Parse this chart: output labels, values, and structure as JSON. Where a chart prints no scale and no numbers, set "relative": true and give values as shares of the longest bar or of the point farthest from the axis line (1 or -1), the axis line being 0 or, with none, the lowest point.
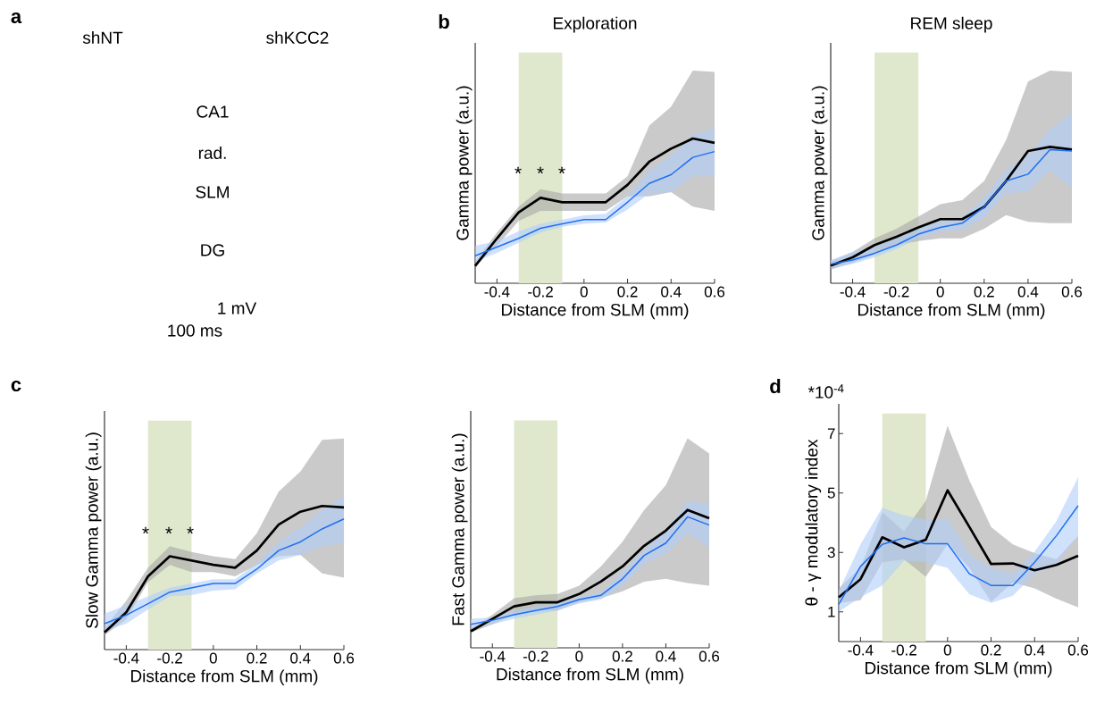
{
  "chart_data": [
    {
      "type": "other",
      "annotations": [
        "a",
        "shNT",
        "shKCC2",
        "CA1",
        "rad.",
        "SLM",
        "DG",
        "1 mV",
        "100 ms"
      ]
    },
    {
      "type": "line",
      "title": "Exploration",
      "xlabel": "Distance from SLM (mm)",
      "ylabel": "Gamma power (a.u.)",
      "relative": true,
      "x": [
        -0.5,
        -0.4,
        -0.3,
        -0.2,
        -0.1,
        0,
        0.1,
        0.2,
        0.3,
        0.4,
        0.5,
        0.6
      ],
      "xlim": [
        -0.5,
        0.6
      ],
      "xticks": [
        -0.4,
        -0.2,
        0,
        0.2,
        0.4,
        0.6
      ],
      "series": [
        {
          "color": "#000000",
          "values": [
            0.12,
            0.31,
            0.49,
            0.59,
            0.56,
            0.56,
            0.56,
            0.68,
            0.84,
            0.93,
            1.0,
            0.97
          ],
          "lower": [
            0.12,
            0.26,
            0.43,
            0.5,
            0.5,
            0.5,
            0.5,
            0.6,
            0.6,
            0.63,
            0.53,
            0.5
          ],
          "upper": [
            0.15,
            0.35,
            0.53,
            0.65,
            0.62,
            0.62,
            0.62,
            0.74,
            1.09,
            1.22,
            1.47,
            1.46
          ]
        },
        {
          "color": "#1f6ff2",
          "values": [
            0.19,
            0.25,
            0.31,
            0.38,
            0.41,
            0.44,
            0.44,
            0.56,
            0.69,
            0.75,
            0.87,
            0.91
          ],
          "lower": [
            0.15,
            0.21,
            0.28,
            0.35,
            0.39,
            0.41,
            0.42,
            0.51,
            0.62,
            0.63,
            0.74,
            0.74
          ],
          "upper": [
            0.26,
            0.29,
            0.36,
            0.41,
            0.44,
            0.47,
            0.48,
            0.6,
            0.78,
            0.88,
            1.03,
            1.07
          ]
        }
      ],
      "bands": [
        {
          "axis": "x",
          "from": -0.3,
          "to": -0.1,
          "color": "#dfe8cc"
        }
      ],
      "annotations": [
        "b",
        "*",
        "*",
        "*"
      ]
    },
    {
      "type": "line",
      "title": "REM sleep",
      "xlabel": "Distance from SLM (mm)",
      "ylabel": "Gamma power (a.u.)",
      "relative": true,
      "x": [
        -0.5,
        -0.4,
        -0.3,
        -0.2,
        -0.1,
        0,
        0.1,
        0.2,
        0.3,
        0.4,
        0.5,
        0.6
      ],
      "xlim": [
        -0.5,
        0.6
      ],
      "xticks": [
        -0.4,
        -0.2,
        0,
        0.2,
        0.4,
        0.6
      ],
      "series": [
        {
          "color": "#000000",
          "values": [
            0.13,
            0.19,
            0.28,
            0.34,
            0.41,
            0.47,
            0.47,
            0.56,
            0.75,
            0.97,
            1.0,
            0.98
          ],
          "lower": [
            0.1,
            0.15,
            0.21,
            0.28,
            0.31,
            0.33,
            0.33,
            0.4,
            0.5,
            0.45,
            0.44,
            0.44
          ],
          "upper": [
            0.16,
            0.23,
            0.33,
            0.4,
            0.49,
            0.58,
            0.61,
            0.75,
            1.05,
            1.48,
            1.56,
            1.55
          ]
        },
        {
          "color": "#1f6ff2",
          "values": [
            0.14,
            0.17,
            0.22,
            0.28,
            0.36,
            0.41,
            0.44,
            0.56,
            0.75,
            0.8,
            0.98,
            0.97
          ],
          "lower": [
            0.11,
            0.14,
            0.19,
            0.25,
            0.33,
            0.38,
            0.39,
            0.48,
            0.66,
            0.67,
            0.83,
            0.7
          ],
          "upper": [
            0.17,
            0.23,
            0.27,
            0.34,
            0.42,
            0.45,
            0.48,
            0.63,
            0.83,
            0.94,
            1.13,
            1.25
          ]
        }
      ],
      "bands": [
        {
          "axis": "x",
          "from": -0.3,
          "to": -0.1,
          "color": "#dfe8cc"
        }
      ]
    },
    {
      "type": "line",
      "xlabel": "Distance from SLM (mm)",
      "ylabel": "Slow Gamma power (a.u.)",
      "relative": true,
      "x": [
        -0.5,
        -0.4,
        -0.3,
        -0.2,
        -0.1,
        0,
        0.1,
        0.2,
        0.3,
        0.4,
        0.5,
        0.6
      ],
      "xlim": [
        -0.5,
        0.6
      ],
      "xticks": [
        -0.4,
        -0.2,
        0,
        0.2,
        0.4,
        0.6
      ],
      "series": [
        {
          "color": "#000000",
          "values": [
            0.12,
            0.26,
            0.51,
            0.65,
            0.62,
            0.59,
            0.57,
            0.69,
            0.87,
            0.96,
            1.0,
            0.99
          ],
          "lower": [
            0.1,
            0.21,
            0.47,
            0.59,
            0.54,
            0.54,
            0.51,
            0.59,
            0.65,
            0.66,
            0.53,
            0.5
          ],
          "upper": [
            0.15,
            0.34,
            0.57,
            0.72,
            0.68,
            0.65,
            0.63,
            0.81,
            1.1,
            1.24,
            1.46,
            1.47
          ]
        },
        {
          "color": "#1f6ff2",
          "values": [
            0.18,
            0.24,
            0.32,
            0.4,
            0.43,
            0.46,
            0.46,
            0.56,
            0.69,
            0.75,
            0.84,
            0.91
          ],
          "lower": [
            0.13,
            0.18,
            0.28,
            0.37,
            0.38,
            0.41,
            0.42,
            0.53,
            0.62,
            0.66,
            0.72,
            0.74
          ],
          "upper": [
            0.25,
            0.31,
            0.37,
            0.43,
            0.46,
            0.49,
            0.49,
            0.6,
            0.75,
            0.85,
            0.97,
            1.07
          ]
        }
      ],
      "bands": [
        {
          "axis": "x",
          "from": -0.3,
          "to": -0.1,
          "color": "#dfe8cc"
        }
      ],
      "annotations": [
        "c",
        "*",
        "*",
        "*"
      ]
    },
    {
      "type": "line",
      "xlabel": "Distance from SLM (mm)",
      "ylabel": "Fast Gamma power (a.u.)",
      "relative": true,
      "x": [
        -0.5,
        -0.4,
        -0.3,
        -0.2,
        -0.1,
        0,
        0.1,
        0.2,
        0.3,
        0.4,
        0.5,
        0.6
      ],
      "xlim": [
        -0.5,
        0.6
      ],
      "xticks": [
        -0.4,
        -0.2,
        0,
        0.2,
        0.4,
        0.6
      ],
      "series": [
        {
          "color": "#000000",
          "values": [
            0.12,
            0.21,
            0.3,
            0.33,
            0.33,
            0.39,
            0.48,
            0.59,
            0.74,
            0.85,
            1.0,
            0.94
          ],
          "lower": [
            0.11,
            0.17,
            0.24,
            0.27,
            0.27,
            0.33,
            0.36,
            0.41,
            0.48,
            0.5,
            0.47,
            0.45
          ],
          "upper": [
            0.14,
            0.24,
            0.36,
            0.38,
            0.39,
            0.45,
            0.59,
            0.77,
            1.0,
            1.18,
            1.52,
            1.41
          ]
        },
        {
          "color": "#1f6ff2",
          "values": [
            0.17,
            0.2,
            0.24,
            0.27,
            0.3,
            0.35,
            0.38,
            0.5,
            0.67,
            0.76,
            0.95,
            0.89
          ],
          "lower": [
            0.14,
            0.17,
            0.21,
            0.24,
            0.27,
            0.32,
            0.35,
            0.45,
            0.61,
            0.68,
            0.83,
            0.73
          ],
          "upper": [
            0.21,
            0.22,
            0.27,
            0.3,
            0.32,
            0.37,
            0.4,
            0.55,
            0.71,
            0.85,
            1.06,
            1.05
          ]
        }
      ],
      "bands": [
        {
          "axis": "x",
          "from": -0.3,
          "to": -0.1,
          "color": "#dfe8cc"
        }
      ]
    },
    {
      "type": "line",
      "xlabel": "Distance from SLM (mm)",
      "ylabel": "θ - γ modulatory index",
      "x": [
        -0.5,
        -0.4,
        -0.3,
        -0.2,
        -0.1,
        0,
        0.1,
        0.2,
        0.3,
        0.4,
        0.5,
        0.6
      ],
      "xlim": [
        -0.5,
        0.6
      ],
      "xticks": [
        -0.4,
        -0.2,
        0,
        0.2,
        0.4,
        0.6
      ],
      "ylim": [
        0,
        8
      ],
      "yticks": [
        1,
        3,
        5,
        7
      ],
      "series": [
        {
          "color": "#000000",
          "values": [
            1.49,
            2.1,
            3.51,
            3.17,
            3.43,
            5.09,
            3.86,
            2.61,
            2.63,
            2.4,
            2.58,
            2.89
          ],
          "lower": [
            1.3,
            1.39,
            2.67,
            2.77,
            2.18,
            3.27,
            2.48,
            1.34,
            1.99,
            1.79,
            1.44,
            1.15
          ],
          "upper": [
            1.79,
            2.48,
            4.35,
            3.71,
            4.74,
            7.26,
            5.43,
            3.86,
            3.27,
            2.98,
            2.77,
            3.56
          ]
        },
        {
          "color": "#1f6ff2",
          "values": [
            1.25,
            2.53,
            3.27,
            3.49,
            3.29,
            3.29,
            2.28,
            1.89,
            1.89,
            2.67,
            3.56,
            4.57
          ],
          "lower": [
            1.0,
            1.49,
            1.89,
            2.72,
            2.67,
            2.48,
            1.59,
            1.3,
            1.54,
            2.28,
            2.63,
            3.56
          ],
          "upper": [
            1.69,
            3.27,
            4.5,
            4.25,
            4.1,
            4.15,
            2.94,
            2.48,
            2.28,
            3.02,
            4.05,
            5.53
          ]
        }
      ],
      "bands": [
        {
          "axis": "x",
          "from": -0.3,
          "to": -0.1,
          "color": "#dfe8cc"
        }
      ],
      "annotations": [
        "d",
        "*10$^{-4}$"
      ]
    }
  ]
}
